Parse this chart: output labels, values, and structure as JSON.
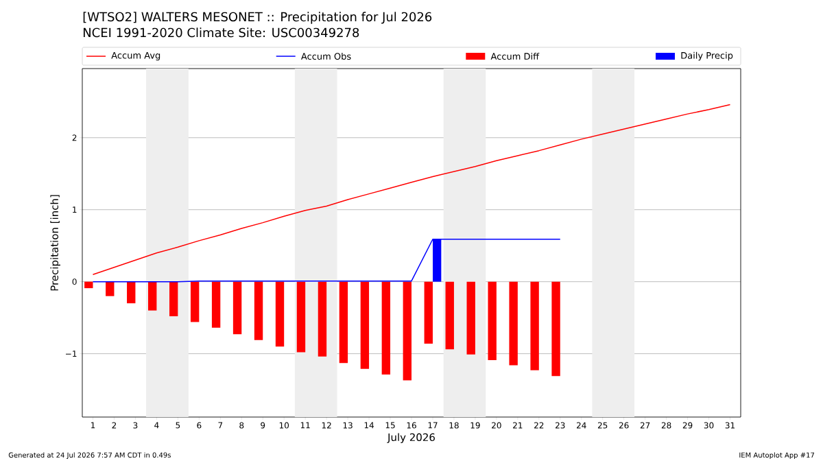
{
  "chart_data": {
    "type": "line",
    "title": "[WTSO2] WALTERS MESONET :: Precipitation for Jul 2026",
    "subtitle": "NCEI 1991-2020 Climate Site: USC00349278",
    "xlabel": "July 2026",
    "ylabel": "Precipitation [inch]",
    "x": [
      1,
      2,
      3,
      4,
      5,
      6,
      7,
      8,
      9,
      10,
      11,
      12,
      13,
      14,
      15,
      16,
      17,
      18,
      19,
      20,
      21,
      22,
      23,
      24,
      25,
      26,
      27,
      28,
      29,
      30,
      31
    ],
    "series": [
      {
        "name": "Accum Avg",
        "color": "#ff0000",
        "values": [
          0.1,
          0.2,
          0.3,
          0.4,
          0.48,
          0.57,
          0.65,
          0.74,
          0.82,
          0.91,
          0.99,
          1.05,
          1.14,
          1.22,
          1.3,
          1.38,
          1.46,
          1.53,
          1.6,
          1.68,
          1.75,
          1.82,
          1.9,
          1.98,
          2.05,
          2.12,
          2.19,
          2.26,
          2.33,
          2.39,
          2.46
        ]
      },
      {
        "name": "Accum Obs",
        "color": "#0000ff",
        "values": [
          0,
          0,
          0,
          0,
          0,
          0.01,
          0.01,
          0.01,
          0.01,
          0.01,
          0.01,
          0.01,
          0.01,
          0.01,
          0.01,
          0.01,
          0.59,
          0.59,
          0.59,
          0.59,
          0.59,
          0.59,
          0.59,
          null,
          null,
          null,
          null,
          null,
          null,
          null,
          null
        ]
      },
      {
        "name": "Accum Diff",
        "type": "bar",
        "color": "#ff0000",
        "values": [
          -0.09,
          -0.2,
          -0.3,
          -0.4,
          -0.48,
          -0.56,
          -0.64,
          -0.73,
          -0.81,
          -0.9,
          -0.98,
          -1.04,
          -1.13,
          -1.21,
          -1.29,
          -1.37,
          -0.86,
          -0.94,
          -1.01,
          -1.09,
          -1.16,
          -1.23,
          -1.31,
          null,
          null,
          null,
          null,
          null,
          null,
          null,
          null
        ]
      },
      {
        "name": "Daily Precip",
        "type": "bar",
        "color": "#0000ff",
        "values": [
          0,
          0,
          0,
          0,
          0,
          0,
          0,
          0,
          0,
          0,
          0,
          0,
          0,
          0,
          0,
          0,
          0.59,
          0,
          0,
          0,
          0,
          0,
          0,
          null,
          null,
          null,
          null,
          null,
          null,
          null,
          null
        ]
      }
    ],
    "xlim": [
      0.5,
      31.5
    ],
    "ylim": [
      -1.88,
      2.96
    ],
    "xticks": [
      1,
      2,
      3,
      4,
      5,
      6,
      7,
      8,
      9,
      10,
      11,
      12,
      13,
      14,
      15,
      16,
      17,
      18,
      19,
      20,
      21,
      22,
      23,
      24,
      25,
      26,
      27,
      28,
      29,
      30,
      31
    ],
    "yticks": [
      {
        "value": -1,
        "label": "−1"
      },
      0,
      1,
      2
    ],
    "grid": "y",
    "legend": "top",
    "bands": [
      {
        "axis": "x",
        "from": 3.5,
        "to": 5.5,
        "color": "#eeeeee"
      },
      {
        "axis": "x",
        "from": 10.5,
        "to": 12.5,
        "color": "#eeeeee"
      },
      {
        "axis": "x",
        "from": 17.5,
        "to": 19.5,
        "color": "#eeeeee"
      },
      {
        "axis": "x",
        "from": 24.5,
        "to": 26.5,
        "color": "#eeeeee"
      }
    ],
    "annotations": [
      "Generated at 24 Jul 2026 7:57 AM CDT in 0.49s",
      "IEM Autoplot App #17"
    ]
  }
}
